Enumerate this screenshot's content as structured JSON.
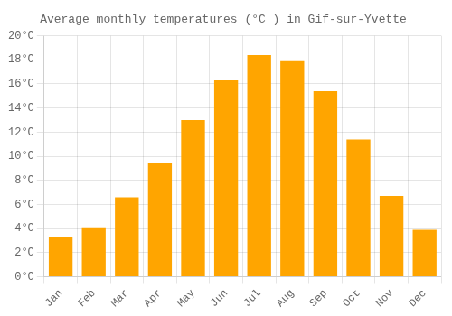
{
  "chart_data": {
    "type": "bar",
    "title": "Average monthly temperatures (°C ) in Gif-sur-Yvette",
    "categories": [
      "Jan",
      "Feb",
      "Mar",
      "Apr",
      "May",
      "Jun",
      "Jul",
      "Aug",
      "Sep",
      "Oct",
      "Nov",
      "Dec"
    ],
    "values": [
      3.3,
      4.1,
      6.6,
      9.4,
      13.0,
      16.3,
      18.4,
      17.9,
      15.4,
      11.4,
      6.7,
      3.9
    ],
    "color": "#FFA500",
    "ylim": [
      0,
      20
    ],
    "yticks": [
      {
        "value": 0,
        "label": "0°C"
      },
      {
        "value": 2,
        "label": "2°C"
      },
      {
        "value": 4,
        "label": "4°C"
      },
      {
        "value": 6,
        "label": "6°C"
      },
      {
        "value": 8,
        "label": "8°C"
      },
      {
        "value": 10,
        "label": "10°C"
      },
      {
        "value": 12,
        "label": "12°C"
      },
      {
        "value": 14,
        "label": "14°C"
      },
      {
        "value": 16,
        "label": "16°C"
      },
      {
        "value": 18,
        "label": "18°C"
      },
      {
        "value": 20,
        "label": "20°C"
      }
    ],
    "grid": true
  }
}
